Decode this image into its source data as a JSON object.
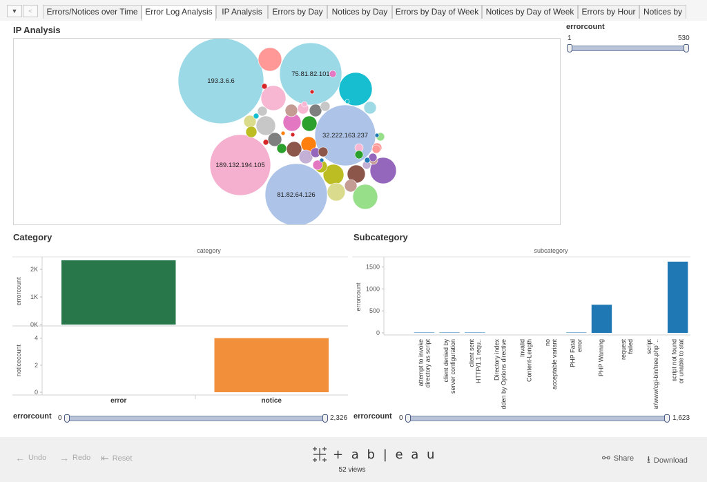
{
  "tabs": [
    {
      "label": "Errors/Notices over Time",
      "active": false
    },
    {
      "label": "Error Log Analysis",
      "active": true
    },
    {
      "label": "IP Analysis",
      "active": false
    },
    {
      "label": "Errors by Day",
      "active": false
    },
    {
      "label": "Notices by Day",
      "active": false
    },
    {
      "label": "Errors by Day of Week",
      "active": false
    },
    {
      "label": "Notices by Day of Week",
      "active": false
    },
    {
      "label": "Errors by Hour",
      "active": false
    },
    {
      "label": "Notices by",
      "active": false
    }
  ],
  "ip_analysis": {
    "title": "IP Analysis",
    "bubbles": [
      {
        "label": "193.3.6.6",
        "r": 62,
        "color": "#9cd9e6"
      },
      {
        "label": "75.81.82.101",
        "r": 45,
        "color": "#9cd9e6"
      },
      {
        "label": "32.222.163.237",
        "r": 44,
        "color": "#adc4e8"
      },
      {
        "label": "189.132.194.105",
        "r": 44,
        "color": "#f5b0cf"
      },
      {
        "label": "81.82.64.126",
        "r": 45,
        "color": "#adc4e8"
      },
      {
        "label": "",
        "r": 24,
        "color": "#17becf"
      },
      {
        "label": "",
        "r": 17,
        "color": "#ff9896"
      },
      {
        "label": "",
        "r": 18,
        "color": "#f7b6d2"
      },
      {
        "label": "",
        "r": 19,
        "color": "#9467bd"
      },
      {
        "label": "",
        "r": 18,
        "color": "#98df8a"
      },
      {
        "label": "",
        "r": 15,
        "color": "#bcbd22"
      },
      {
        "label": "",
        "r": 13,
        "color": "#8c564b"
      },
      {
        "label": "",
        "r": 13,
        "color": "#dbdb8d"
      },
      {
        "label": "",
        "r": 14,
        "color": "#c7c7c7"
      },
      {
        "label": "",
        "r": 13,
        "color": "#e377c2"
      },
      {
        "label": "",
        "r": 11,
        "color": "#2ca02c"
      },
      {
        "label": "",
        "r": 11,
        "color": "#8c564b"
      },
      {
        "label": "",
        "r": 11,
        "color": "#ff7f0e"
      },
      {
        "label": "",
        "r": 10,
        "color": "#7f7f7f"
      },
      {
        "label": "",
        "r": 9,
        "color": "#c49c94"
      },
      {
        "label": "",
        "r": 10,
        "color": "#c5b0d5"
      },
      {
        "label": "",
        "r": 9,
        "color": "#bcbd22"
      },
      {
        "label": "",
        "r": 9,
        "color": "#c49c94"
      },
      {
        "label": "",
        "r": 9,
        "color": "#9edae5"
      },
      {
        "label": "",
        "r": 9,
        "color": "#7f7f7f"
      },
      {
        "label": "",
        "r": 9,
        "color": "#dbdb8d"
      },
      {
        "label": "",
        "r": 8,
        "color": "#f7b6d2"
      },
      {
        "label": "",
        "r": 8,
        "color": "#bcbd22"
      },
      {
        "label": "",
        "r": 7,
        "color": "#c7c7c7"
      },
      {
        "label": "",
        "r": 7,
        "color": "#9467bd"
      },
      {
        "label": "",
        "r": 7,
        "color": "#2ca02c"
      },
      {
        "label": "",
        "r": 7,
        "color": "#e377c2"
      },
      {
        "label": "",
        "r": 7,
        "color": "#8c564b"
      },
      {
        "label": "",
        "r": 7,
        "color": "#c7c7c7"
      },
      {
        "label": "",
        "r": 7,
        "color": "#ff9896"
      },
      {
        "label": "",
        "r": 6,
        "color": "#f7b6d2"
      },
      {
        "label": "",
        "r": 6,
        "color": "#98df8a"
      },
      {
        "label": "",
        "r": 6,
        "color": "#2ca02c"
      },
      {
        "label": "",
        "r": 6,
        "color": "#c5b0d5"
      },
      {
        "label": "",
        "r": 6,
        "color": "#c49c94"
      },
      {
        "label": "",
        "r": 6,
        "color": "#ff9896"
      },
      {
        "label": "",
        "r": 6,
        "color": "#9467bd"
      },
      {
        "label": "",
        "r": 5,
        "color": "#e377c2"
      },
      {
        "label": "",
        "r": 4,
        "color": "#d62728"
      },
      {
        "label": "",
        "r": 4,
        "color": "#1f77b4"
      },
      {
        "label": "",
        "r": 4,
        "color": "#17becf"
      },
      {
        "label": "",
        "r": 4,
        "color": "#f7b6d2"
      },
      {
        "label": "",
        "r": 4,
        "color": "#d62728"
      },
      {
        "label": "",
        "r": 3,
        "color": "#d62728"
      },
      {
        "label": "",
        "r": 3,
        "color": "#1f77b4"
      },
      {
        "label": "",
        "r": 3,
        "color": "#ff7f0e"
      },
      {
        "label": "",
        "r": 3,
        "color": "#17becf"
      },
      {
        "label": "",
        "r": 3,
        "color": "#d62728"
      },
      {
        "label": "",
        "r": 3,
        "color": "#1f77b4"
      }
    ],
    "filter": {
      "title": "errorcount",
      "min": "1",
      "max": "530"
    }
  },
  "category": {
    "title": "Category",
    "header": "category",
    "error_ylabel": "errorcount",
    "notice_ylabel": "noticecount",
    "error_ticks": [
      "2K",
      "1K",
      "0K"
    ],
    "notice_ticks": [
      "4",
      "2",
      "0"
    ],
    "categories": [
      "error",
      "notice"
    ],
    "filter": {
      "title": "errorcount",
      "min": "0",
      "max": "2,326"
    }
  },
  "subcategory": {
    "title": "Subcategory",
    "header": "subcategory",
    "ylabel": "errorcount",
    "ticks": [
      "1500",
      "1000",
      "500",
      "0"
    ],
    "filter": {
      "title": "errorcount",
      "min": "0",
      "max": "1,623"
    }
  },
  "chart_data": [
    {
      "type": "bar",
      "name": "category-errorcount",
      "categories": [
        "error",
        "notice"
      ],
      "values": [
        2326,
        0
      ],
      "ylabel": "errorcount",
      "ylim": [
        0,
        2400
      ],
      "color": "#28774a"
    },
    {
      "type": "bar",
      "name": "category-noticecount",
      "categories": [
        "error",
        "notice"
      ],
      "values": [
        0,
        4
      ],
      "ylabel": "noticecount",
      "ylim": [
        0,
        4.8
      ],
      "color": "#f28f3b"
    },
    {
      "type": "bar",
      "name": "subcategory-errorcount",
      "categories": [
        "attempt to invoke directory as script",
        "client denied by server configuration",
        "client sent HTTP/1.1 requ..",
        "Directory index forbidden by Options directive",
        "Invalid Content-Length",
        "no acceptable variant",
        "PHP Fatal error",
        "PHP Warning",
        "request failed",
        "script '/var/www/cgi-bin/tree.php' ..",
        "script not found or unable to stat"
      ],
      "values": [
        8,
        8,
        8,
        0,
        0,
        0,
        8,
        640,
        0,
        0,
        1623
      ],
      "ylabel": "errorcount",
      "ylim": [
        0,
        1700
      ],
      "color": "#1f77b4"
    }
  ],
  "footer": {
    "undo": "Undo",
    "redo": "Redo",
    "reset": "Reset",
    "brand": "+ a b | e a u",
    "views": "52 views",
    "share": "Share",
    "download": "Download"
  }
}
